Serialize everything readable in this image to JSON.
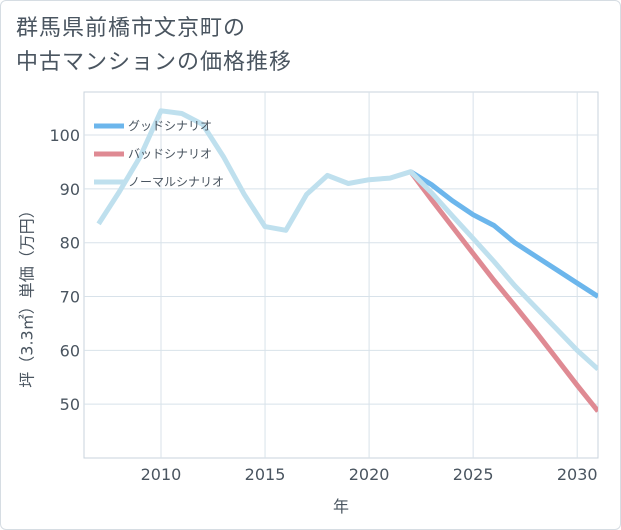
{
  "title": {
    "line1": "群馬県前橋市文京町の",
    "line2": "中古マンションの価格推移"
  },
  "chart_data": {
    "type": "line",
    "title": "群馬県前橋市文京町の中古マンションの価格推移",
    "xlabel": "年",
    "ylabel": "坪（3.3㎡）単価（万円）",
    "xlim": [
      2006.3,
      2031
    ],
    "ylim": [
      40,
      108
    ],
    "x_ticks": [
      2010,
      2015,
      2020,
      2025,
      2030
    ],
    "y_ticks": [
      50,
      60,
      70,
      80,
      90,
      100
    ],
    "grid": true,
    "legend_position": "top-left",
    "series": [
      {
        "name": "グッドシナリオ",
        "color": "#6cb6ec",
        "x": [
          2022,
          2023,
          2024,
          2025,
          2026,
          2027,
          2028,
          2029,
          2030,
          2031
        ],
        "y": [
          93.2,
          90.8,
          87.8,
          85.2,
          83.2,
          80.0,
          77.5,
          75.0,
          72.5,
          70.0
        ]
      },
      {
        "name": "バッドシナリオ",
        "color": "#df8a93",
        "x": [
          2022,
          2023,
          2024,
          2025,
          2026,
          2027,
          2028,
          2029,
          2030,
          2031
        ],
        "y": [
          93.2,
          88.0,
          83.0,
          78.0,
          73.0,
          68.3,
          63.5,
          58.5,
          53.5,
          48.7
        ]
      },
      {
        "name": "ノーマルシナリオ",
        "color": "#bfe0ee",
        "x": [
          2007,
          2008,
          2009,
          2010,
          2011,
          2012,
          2013,
          2014,
          2015,
          2016,
          2017,
          2018,
          2019,
          2020,
          2021,
          2022,
          2023,
          2024,
          2025,
          2026,
          2027,
          2028,
          2029,
          2030,
          2031
        ],
        "y": [
          83.5,
          89.5,
          96.0,
          104.5,
          104.0,
          102.0,
          96.0,
          89.0,
          83.0,
          82.3,
          89.0,
          92.5,
          91.0,
          91.7,
          92.0,
          93.2,
          89.3,
          85.0,
          80.8,
          76.5,
          72.0,
          68.0,
          64.0,
          60.0,
          56.5
        ]
      }
    ]
  }
}
